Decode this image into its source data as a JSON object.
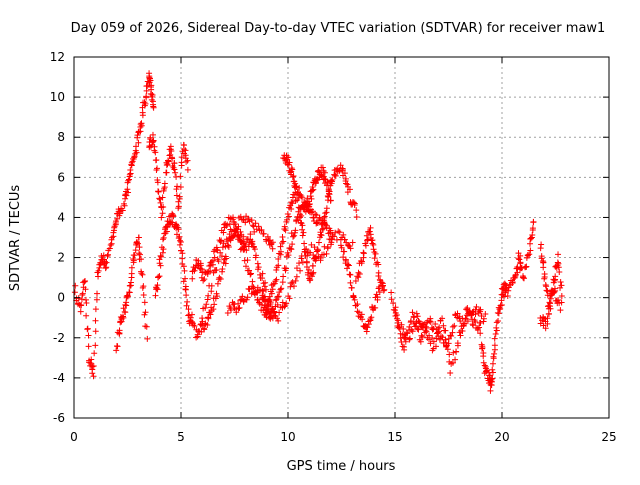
{
  "chart_data": {
    "type": "scatter",
    "title": "Day 059 of 2026, Sidereal Day-to-day VTEC variation (SDTVAR) for receiver maw1",
    "xlabel": "GPS time / hours",
    "ylabel": "SDTVAR / TECUs",
    "xlim": [
      0,
      25
    ],
    "ylim": [
      -6,
      12
    ],
    "xticks": [
      0,
      5,
      10,
      15,
      20,
      25
    ],
    "yticks": [
      -6,
      -4,
      -2,
      0,
      2,
      4,
      6,
      8,
      10,
      12
    ],
    "grid": true,
    "marker": "+",
    "series": [
      {
        "name": "SDTVAR",
        "color": "#ff0000",
        "tracks": [
          {
            "x": [
              0.0,
              0.3,
              0.5,
              0.7,
              0.9,
              1.1,
              1.3,
              1.5,
              1.8,
              2.0,
              2.2
            ],
            "y": [
              0.5,
              -0.5,
              0.8,
              -3.0,
              -3.8,
              1.0,
              2.0,
              1.5,
              3.0,
              4.2,
              4.5
            ]
          },
          {
            "x": [
              2.3,
              2.5,
              2.7,
              2.9,
              3.1,
              3.3,
              3.5,
              3.6,
              3.7
            ],
            "y": [
              4.6,
              5.5,
              6.5,
              7.5,
              8.5,
              9.8,
              11.0,
              10.5,
              9.5
            ]
          },
          {
            "x": [
              3.5,
              3.7,
              3.9,
              4.1,
              4.3,
              4.5,
              4.7,
              4.9,
              5.1,
              5.3
            ],
            "y": [
              7.5,
              8.0,
              6.0,
              4.0,
              6.5,
              7.5,
              6.5,
              4.5,
              7.8,
              6.5
            ]
          },
          {
            "x": [
              2.0,
              2.2,
              2.4,
              2.6,
              2.8,
              3.0,
              3.2,
              3.4
            ],
            "y": [
              -2.5,
              -1.0,
              -0.5,
              0.5,
              2.0,
              3.0,
              1.0,
              -2.0
            ]
          },
          {
            "x": [
              3.8,
              4.0,
              4.2,
              4.4,
              4.6,
              4.8,
              5.0,
              5.2,
              5.4,
              5.6
            ],
            "y": [
              0.0,
              1.5,
              3.0,
              3.8,
              4.0,
              3.5,
              2.5,
              0.5,
              -1.0,
              -1.2
            ]
          },
          {
            "x": [
              5.5,
              5.8,
              6.0,
              6.3,
              6.6,
              7.0,
              7.4,
              7.8,
              8.0,
              8.3,
              8.6,
              9.0
            ],
            "y": [
              1.0,
              2.0,
              1.0,
              1.5,
              2.2,
              3.5,
              4.0,
              3.0,
              2.5,
              3.0,
              1.5,
              0.5
            ]
          },
          {
            "x": [
              5.7,
              6.0,
              6.3,
              6.6,
              7.0,
              7.3,
              7.6,
              8.0,
              8.4,
              8.8,
              9.2
            ],
            "y": [
              -1.8,
              -1.5,
              -1.0,
              0.0,
              1.5,
              3.0,
              3.2,
              2.0,
              0.5,
              -0.5,
              -1.0
            ]
          },
          {
            "x": [
              6.0,
              6.5,
              7.0,
              7.5,
              8.0,
              8.5,
              9.0,
              9.3
            ],
            "y": [
              -1.0,
              1.0,
              2.5,
              3.5,
              4.0,
              3.5,
              3.0,
              2.5
            ]
          },
          {
            "x": [
              7.2,
              7.6,
              8.0,
              8.5,
              9.0,
              9.5,
              10.0,
              10.5,
              11.0,
              11.5,
              12.0,
              12.5,
              13.0
            ],
            "y": [
              -0.5,
              -0.5,
              0.0,
              0.5,
              0.0,
              -1.0,
              0.0,
              1.5,
              2.5,
              2.0,
              2.8,
              3.2,
              2.5
            ]
          },
          {
            "x": [
              8.8,
              9.0,
              9.3,
              9.6,
              9.9,
              10.2,
              10.5,
              10.8,
              11.0,
              11.2,
              11.4,
              11.6,
              11.8,
              12.0
            ],
            "y": [
              0.0,
              -0.5,
              0.5,
              2.0,
              3.5,
              4.8,
              5.2,
              4.5,
              4.8,
              5.5,
              6.0,
              6.3,
              5.8,
              5.0
            ]
          },
          {
            "x": [
              9.0,
              9.3,
              9.6,
              10.0,
              10.3,
              10.6,
              10.9,
              11.2,
              11.5,
              11.8,
              12.1
            ],
            "y": [
              -0.5,
              -0.8,
              0.2,
              2.0,
              3.5,
              4.3,
              4.5,
              4.0,
              3.8,
              3.5,
              3.0
            ]
          },
          {
            "x": [
              9.8,
              10.0,
              10.2,
              10.4,
              10.6,
              10.8,
              11.0,
              11.2,
              11.5,
              11.8,
              12.0,
              12.3,
              12.6,
              12.9,
              13.2
            ],
            "y": [
              7.0,
              6.8,
              6.2,
              5.5,
              4.0,
              2.5,
              1.0,
              1.5,
              3.0,
              4.5,
              5.8,
              6.5,
              6.3,
              5.0,
              4.2
            ]
          },
          {
            "x": [
              12.5,
              12.8,
              13.1,
              13.4,
              13.7,
              14.0,
              14.3
            ],
            "y": [
              2.5,
              1.5,
              0.0,
              -1.0,
              -1.5,
              -0.5,
              0.5
            ]
          },
          {
            "x": [
              13.2,
              13.5,
              13.8,
              14.0,
              14.3,
              14.5
            ],
            "y": [
              1.0,
              2.0,
              3.5,
              2.5,
              1.0,
              0.5
            ]
          },
          {
            "x": [
              14.8,
              15.2,
              15.6,
              16.0,
              16.4,
              16.8,
              17.2,
              17.6,
              18.0,
              18.4,
              18.8,
              19.2
            ],
            "y": [
              0.0,
              -1.5,
              -2.0,
              -1.0,
              -1.5,
              -2.5,
              -1.0,
              -3.5,
              -2.0,
              -0.5,
              -1.5,
              -1.0
            ]
          },
          {
            "x": [
              15.0,
              15.4,
              15.8,
              16.2,
              16.6,
              17.0,
              17.4,
              17.8,
              18.2,
              18.6,
              19.0
            ],
            "y": [
              -0.5,
              -2.5,
              -0.8,
              -2.0,
              -1.0,
              -1.8,
              -2.5,
              -1.0,
              -1.2,
              -0.8,
              -0.5
            ]
          },
          {
            "x": [
              19.0,
              19.2,
              19.4,
              19.5,
              19.6,
              19.8,
              20.0,
              20.2
            ],
            "y": [
              -2.0,
              -3.5,
              -4.0,
              -4.5,
              -3.0,
              -1.0,
              0.0,
              0.5
            ]
          },
          {
            "x": [
              20.0,
              20.3,
              20.6,
              20.8,
              21.0,
              21.3,
              21.5
            ],
            "y": [
              0.5,
              0.3,
              1.0,
              2.0,
              1.0,
              2.5,
              3.8
            ]
          },
          {
            "x": [
              21.8,
              22.0,
              22.2,
              22.4,
              22.6,
              22.8
            ],
            "y": [
              2.5,
              1.0,
              -0.5,
              0.5,
              2.0,
              0.0
            ]
          },
          {
            "x": [
              21.8,
              22.1,
              22.4,
              22.7
            ],
            "y": [
              -1.0,
              -1.5,
              0.5,
              -0.5
            ]
          }
        ]
      }
    ]
  }
}
